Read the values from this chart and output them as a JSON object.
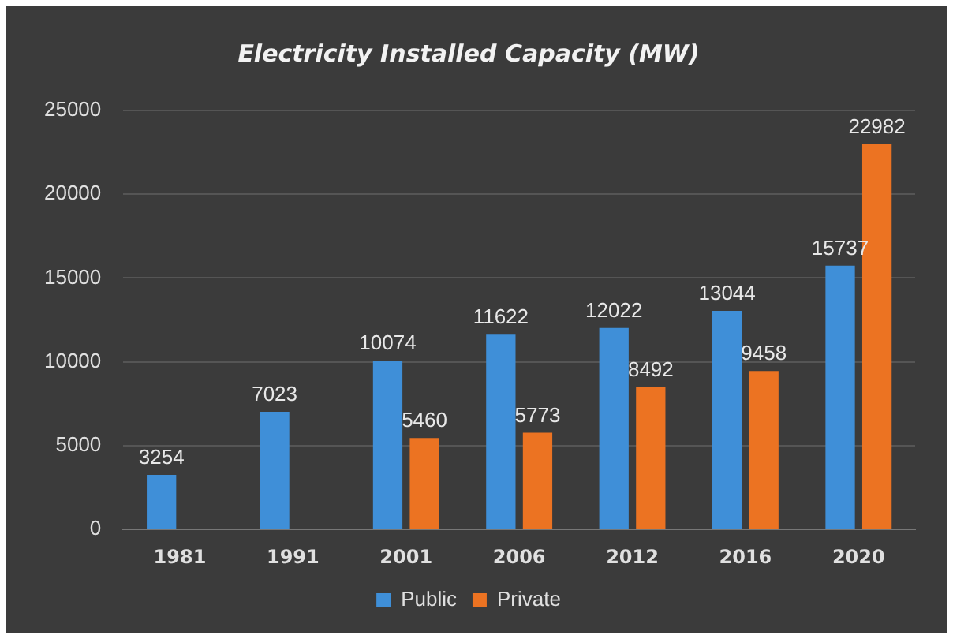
{
  "chart_data": {
    "type": "bar",
    "title": "Electricity Installed Capacity (MW)",
    "categories": [
      "1981",
      "1991",
      "2001",
      "2006",
      "2012",
      "2016",
      "2020"
    ],
    "series": [
      {
        "name": "Public",
        "color": "#3f8fd8",
        "values": [
          3254,
          7023,
          10074,
          11622,
          12022,
          13044,
          15737
        ]
      },
      {
        "name": "Private",
        "color": "#ec7322",
        "values": [
          null,
          null,
          5460,
          5773,
          8492,
          9458,
          22982
        ]
      }
    ],
    "ylim": [
      0,
      25000
    ],
    "yticks": [
      0,
      5000,
      10000,
      15000,
      20000,
      25000
    ],
    "grid": "y",
    "legend": "bottom",
    "data_labels": true
  }
}
